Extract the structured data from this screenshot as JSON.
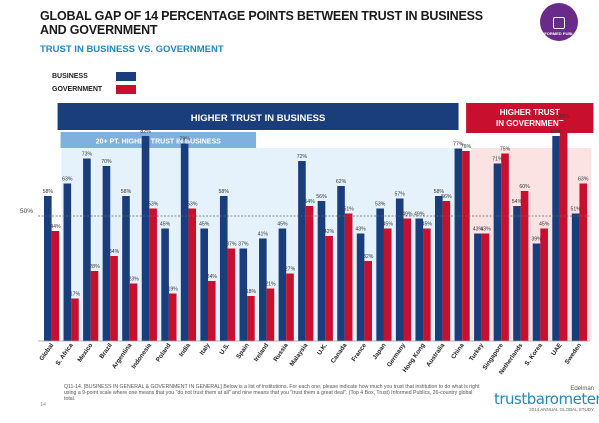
{
  "header": {
    "title": "GLOBAL GAP OF 14 PERCENTAGE POINTS BETWEEN TRUST IN BUSINESS AND GOVERNMENT",
    "subtitle": "TRUST IN BUSINESS VS. GOVERNMENT",
    "badge_text": "INFORMED PUBLIC"
  },
  "legend": {
    "business_label": "BUSINESS",
    "government_label": "GOVERNMENT"
  },
  "bands": {
    "higher_business": "HIGHER TRUST IN BUSINESS",
    "twenty_pt": "20+ PT. HIGHER TRUST IN BUSINESS",
    "higher_government_line1": "HIGHER TRUST",
    "higher_government_line2": "IN GOVERNMENT"
  },
  "reference_label": "50%",
  "footer": {
    "note": "Q11-14. [BUSINESS IN GENERAL & GOVERNMENT IN GENERAL] Below is a list of institutions. For each one, please indicate how much you trust that institution to do what is right using a 9-point scale where one means that you \"do not trust them at all\" and nine means that you \"trust them a great deal\". (Top 4 Box, Trust) Informed Publics, 26-country global total.",
    "page_number": "14",
    "brand_top": "Edelman",
    "brand_main": "trustbarometer",
    "brand_sub": "2014 ANNUAL GLOBAL STUDY"
  },
  "colors": {
    "business": "#1a3d7c",
    "government": "#c8102e",
    "band_business": "#1a3d7c",
    "band_twenty": "#7fb0de",
    "band_government": "#c8102e",
    "bg_business": "#e6f2fb",
    "bg_government": "#fbe3e4"
  },
  "chart_data": {
    "type": "bar",
    "categories": [
      "Global",
      "S. Africa",
      "Mexico",
      "Brazil",
      "Argentina",
      "Indonesia",
      "Poland",
      "India",
      "Italy",
      "U.S.",
      "Spain",
      "Ireland",
      "Russia",
      "Malaysia",
      "U.K.",
      "Canada",
      "France",
      "Japan",
      "Germany",
      "Hong Kong",
      "Australia",
      "China",
      "Turkey",
      "Singapore",
      "Netherlands",
      "S. Korea",
      "UAE",
      "Sweden"
    ],
    "series": [
      {
        "name": "BUSINESS",
        "values": [
          58,
          63,
          73,
          70,
          58,
          82,
          45,
          79,
          45,
          58,
          37,
          41,
          45,
          72,
          56,
          62,
          43,
          53,
          57,
          49,
          58,
          77,
          43,
          71,
          54,
          39,
          82,
          51
        ]
      },
      {
        "name": "GOVERNMENT",
        "values": [
          44,
          17,
          28,
          34,
          23,
          53,
          19,
          53,
          24,
          37,
          18,
          21,
          27,
          54,
          42,
          51,
          32,
          45,
          49,
          45,
          56,
          76,
          43,
          75,
          60,
          45,
          88,
          63
        ]
      }
    ],
    "value_labels": {
      "BUSINESS": [
        "58%",
        "63%",
        "73%",
        "70%",
        "58%",
        "82%",
        "45%",
        "79%",
        "45%",
        "58%",
        "37%",
        "41%",
        "45%",
        "72%",
        "56%",
        "62%",
        "43%",
        "53%",
        "57%",
        "49%",
        "58%",
        "77%",
        "43%",
        "71%",
        "54%",
        "39%",
        "82%",
        "51%"
      ],
      "GOVERNMENT": [
        "44%",
        "17%",
        "28%",
        "34%",
        "23%",
        "53%",
        "19%",
        "53%",
        "24%",
        "37%",
        "18%",
        "21%",
        "27%",
        "54%",
        "42%",
        "51%",
        "32%",
        "45%",
        "49%",
        "45%",
        "56%",
        "76%",
        "43%",
        "75%",
        "60%",
        "45%",
        "88%",
        "63%"
      ]
    },
    "reference_line": 50,
    "ylim": [
      0,
      100
    ],
    "groups": {
      "higher_business_range": [
        1,
        20
      ],
      "twenty_pt_range": [
        1,
        10
      ],
      "higher_government_range": [
        22,
        27
      ]
    },
    "grid": false,
    "legend_position": "top-left"
  }
}
